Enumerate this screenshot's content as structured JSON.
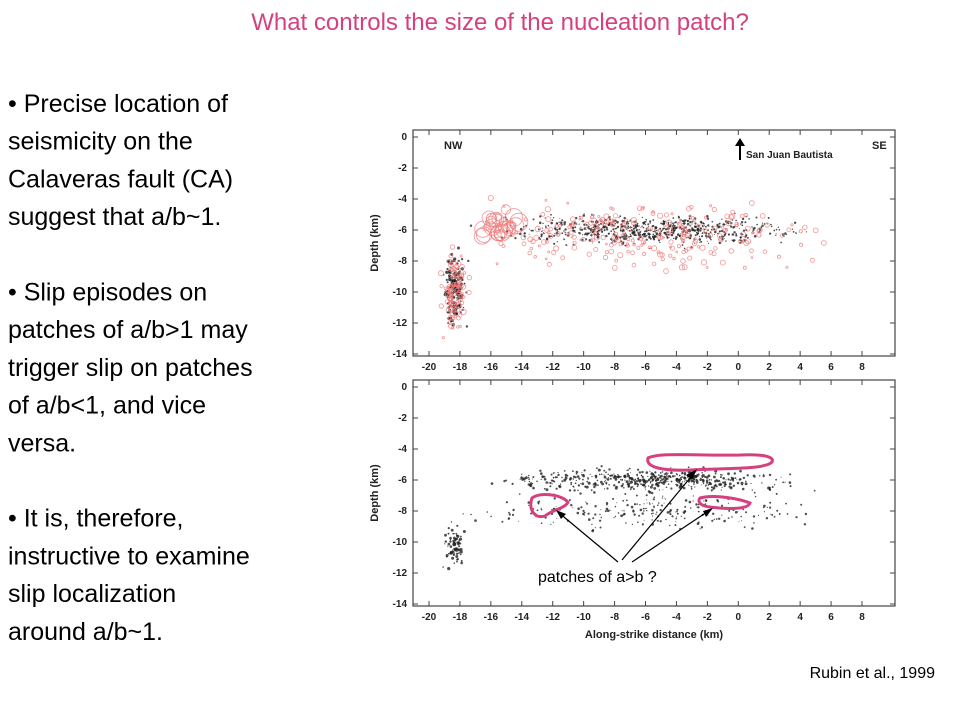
{
  "title": "What controls the size of the nucleation patch?",
  "bullets": [
    [
      "• Precise location of",
      "seismicity on the",
      "Calaveras fault (CA)",
      "suggest that a/b~1."
    ],
    [
      "• Slip episodes on",
      "patches of a/b>1 may",
      "trigger slip on patches",
      "of a/b<1, and vice",
      "versa."
    ],
    [
      "• It is, therefore,",
      "instructive to examine",
      "slip localization",
      "around a/b~1."
    ]
  ],
  "figure": {
    "top_panel": {
      "left_label": "NW",
      "right_label": "SE",
      "annotation": "San Juan Bautista",
      "y_axis_label": "Depth (km)",
      "yticks": [
        "0",
        "-2",
        "-4",
        "-6",
        "-8",
        "-10",
        "-12",
        "-14"
      ],
      "xticks": [
        "-20",
        "-18",
        "-16",
        "-14",
        "-12",
        "-10",
        "-8",
        "-6",
        "-4",
        "-2",
        "0",
        "2",
        "4",
        "6",
        "8"
      ]
    },
    "bottom_panel": {
      "y_axis_label": "Depth (km)",
      "x_axis_label": "Along-strike distance (km)",
      "annotation": "patches of a>b ?",
      "yticks": [
        "0",
        "-2",
        "-4",
        "-6",
        "-8",
        "-10",
        "-12",
        "-14"
      ],
      "xticks": [
        "-20",
        "-18",
        "-16",
        "-14",
        "-12",
        "-10",
        "-8",
        "-6",
        "-4",
        "-2",
        "0",
        "2",
        "4",
        "6",
        "8"
      ]
    }
  },
  "citation": "Rubin et al., 1999"
}
